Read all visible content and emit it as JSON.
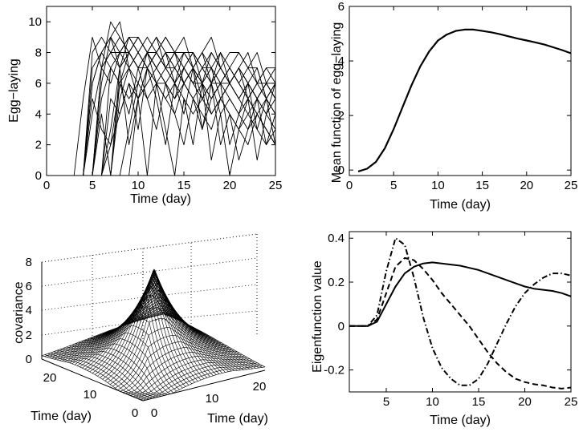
{
  "chart_data": [
    {
      "type": "line",
      "panel": "top-left",
      "xlabel": "Time (day)",
      "ylabel": "Egg−laying",
      "xlim": [
        0,
        25
      ],
      "ylim": [
        0,
        11
      ],
      "xticks": [
        0,
        5,
        10,
        15,
        20,
        25
      ],
      "yticks": [
        0,
        2,
        4,
        6,
        8,
        10
      ],
      "grid": false,
      "x": [
        1,
        2,
        3,
        4,
        5,
        6,
        7,
        8,
        9,
        10,
        11,
        12,
        13,
        14,
        15,
        16,
        17,
        18,
        19,
        20,
        21,
        22,
        23,
        24,
        25
      ],
      "series": [
        {
          "values": [
            0,
            0,
            0,
            0,
            8,
            9,
            8,
            7,
            9,
            8,
            7,
            8,
            9,
            8,
            8,
            7,
            8,
            9,
            7,
            8,
            8,
            7,
            8,
            6,
            7
          ]
        },
        {
          "values": [
            0,
            0,
            0,
            5,
            9,
            7,
            8,
            9,
            8,
            7,
            8,
            6,
            7,
            8,
            9,
            7,
            6,
            8,
            7,
            6,
            7,
            8,
            6,
            7,
            6
          ]
        },
        {
          "values": [
            0,
            0,
            0,
            0,
            6,
            8,
            9,
            10,
            7,
            8,
            9,
            8,
            7,
            6,
            8,
            8,
            7,
            6,
            8,
            7,
            6,
            7,
            7,
            5,
            6
          ]
        },
        {
          "values": [
            0,
            0,
            0,
            0,
            0,
            7,
            8,
            8,
            9,
            9,
            8,
            7,
            8,
            8,
            7,
            6,
            7,
            7,
            6,
            6,
            7,
            6,
            5,
            6,
            6
          ]
        },
        {
          "values": [
            0,
            0,
            0,
            0,
            4,
            7,
            6,
            8,
            7,
            8,
            7,
            8,
            7,
            7,
            6,
            7,
            6,
            5,
            6,
            7,
            6,
            5,
            6,
            5,
            4
          ]
        },
        {
          "values": [
            0,
            0,
            0,
            0,
            0,
            0,
            3,
            7,
            8,
            9,
            8,
            8,
            7,
            8,
            7,
            6,
            6,
            7,
            5,
            6,
            5,
            6,
            5,
            4,
            5
          ]
        },
        {
          "values": [
            0,
            0,
            0,
            0,
            7,
            8,
            7,
            6,
            7,
            5,
            6,
            7,
            6,
            5,
            6,
            5,
            6,
            4,
            5,
            6,
            5,
            4,
            5,
            4,
            3
          ]
        },
        {
          "values": [
            0,
            0,
            0,
            0,
            0,
            6,
            9,
            8,
            8,
            7,
            7,
            6,
            6,
            7,
            6,
            7,
            5,
            6,
            6,
            5,
            4,
            5,
            4,
            3,
            2
          ]
        },
        {
          "values": [
            0,
            0,
            0,
            0,
            0,
            0,
            0,
            5,
            7,
            6,
            8,
            7,
            6,
            5,
            7,
            6,
            5,
            6,
            4,
            5,
            4,
            3,
            4,
            3,
            2
          ]
        },
        {
          "values": [
            0,
            0,
            0,
            0,
            5,
            3,
            2,
            6,
            4,
            7,
            5,
            3,
            6,
            4,
            2,
            5,
            3,
            6,
            2,
            4,
            1,
            3,
            5,
            2,
            4
          ]
        },
        {
          "values": [
            0,
            0,
            0,
            0,
            0,
            0,
            2,
            4,
            6,
            3,
            7,
            5,
            2,
            6,
            4,
            7,
            3,
            5,
            6,
            2,
            4,
            6,
            3,
            5,
            2
          ]
        },
        {
          "values": [
            0,
            0,
            0,
            0,
            0,
            4,
            0,
            7,
            2,
            5,
            0,
            6,
            3,
            0,
            5,
            2,
            6,
            1,
            4,
            0,
            3,
            5,
            1,
            4,
            6
          ]
        },
        {
          "values": [
            0,
            0,
            0,
            0,
            0,
            0,
            0,
            0,
            3,
            6,
            8,
            7,
            8,
            6,
            7,
            8,
            6,
            7,
            8,
            6,
            7,
            6,
            5,
            6,
            5
          ]
        },
        {
          "values": [
            0,
            0,
            0,
            0,
            6,
            8,
            9,
            7,
            8,
            9,
            8,
            9,
            8,
            7,
            8,
            7,
            8,
            7,
            6,
            7,
            8,
            7,
            6,
            7,
            7
          ]
        },
        {
          "values": [
            0,
            0,
            0,
            0,
            0,
            7,
            10,
            9,
            8,
            7,
            8,
            9,
            7,
            8,
            6,
            7,
            8,
            6,
            7,
            6,
            7,
            5,
            6,
            6,
            5
          ]
        },
        {
          "values": [
            0,
            0,
            0,
            0,
            0,
            0,
            7,
            8,
            9,
            8,
            7,
            8,
            9,
            8,
            7,
            6,
            7,
            8,
            7,
            6,
            5,
            6,
            7,
            5,
            6
          ]
        },
        {
          "values": [
            0,
            0,
            0,
            0,
            0,
            0,
            0,
            6,
            8,
            7,
            8,
            7,
            8,
            7,
            6,
            7,
            6,
            5,
            6,
            7,
            6,
            5,
            4,
            5,
            4
          ]
        },
        {
          "values": [
            0,
            0,
            0,
            0,
            0,
            5,
            7,
            6,
            5,
            6,
            5,
            6,
            5,
            6,
            5,
            4,
            5,
            4,
            5,
            4,
            3,
            4,
            3,
            2,
            3
          ]
        },
        {
          "values": [
            0,
            0,
            0,
            0,
            0,
            0,
            5,
            4,
            6,
            5,
            7,
            6,
            5,
            4,
            6,
            5,
            4,
            3,
            5,
            4,
            3,
            2,
            4,
            3,
            2
          ]
        },
        {
          "values": [
            0,
            0,
            0,
            0,
            0,
            0,
            0,
            0,
            0,
            5,
            7,
            8,
            7,
            6,
            7,
            8,
            7,
            6,
            7,
            6,
            7,
            6,
            5,
            6,
            5
          ]
        }
      ]
    },
    {
      "type": "line",
      "panel": "top-right",
      "xlabel": "Time (day)",
      "ylabel": "Mean function of egg−laying",
      "xlim": [
        0,
        25
      ],
      "ylim": [
        -0.2,
        6
      ],
      "xticks": [
        0,
        5,
        10,
        15,
        20,
        25
      ],
      "yticks": [
        0,
        2,
        4,
        6
      ],
      "grid": false,
      "x": [
        1,
        2,
        3,
        4,
        5,
        6,
        7,
        8,
        9,
        10,
        11,
        12,
        13,
        14,
        15,
        16,
        17,
        18,
        19,
        20,
        21,
        22,
        23,
        24,
        25
      ],
      "series": [
        {
          "values": [
            -0.05,
            0.05,
            0.3,
            0.8,
            1.5,
            2.3,
            3.1,
            3.8,
            4.35,
            4.75,
            4.97,
            5.1,
            5.15,
            5.15,
            5.1,
            5.05,
            4.98,
            4.9,
            4.82,
            4.75,
            4.68,
            4.6,
            4.5,
            4.4,
            4.28
          ],
          "style": "solid"
        }
      ]
    },
    {
      "type": "surface",
      "panel": "bottom-left",
      "xlabel": "Time (day)",
      "ylabel": "Time (day)",
      "zlabel": "covariance",
      "xlim": [
        0,
        25
      ],
      "ylim": [
        0,
        25
      ],
      "zlim": [
        0,
        8
      ],
      "xticks": [
        0,
        10,
        20
      ],
      "yticks": [
        0,
        10,
        20
      ],
      "zticks": [
        0,
        2,
        4,
        6,
        8
      ],
      "grid": true,
      "description_values": {
        "peak_covariance": 7.8
      }
    },
    {
      "type": "line",
      "panel": "bottom-right",
      "xlabel": "Time (day)",
      "ylabel": "Eigenfunction value",
      "xlim": [
        1,
        25
      ],
      "ylim": [
        -0.3,
        0.43
      ],
      "xticks": [
        5,
        10,
        15,
        20,
        25
      ],
      "yticks": [
        -0.2,
        0,
        0.2,
        0.4
      ],
      "grid": false,
      "x": [
        1,
        2,
        3,
        4,
        5,
        6,
        7,
        8,
        9,
        10,
        11,
        12,
        13,
        14,
        15,
        16,
        17,
        18,
        19,
        20,
        21,
        22,
        23,
        24,
        25
      ],
      "series": [
        {
          "style": "solid",
          "values": [
            0,
            0,
            0,
            0.02,
            0.1,
            0.18,
            0.24,
            0.27,
            0.285,
            0.29,
            0.285,
            0.28,
            0.275,
            0.265,
            0.255,
            0.24,
            0.225,
            0.21,
            0.195,
            0.18,
            0.17,
            0.165,
            0.16,
            0.15,
            0.135
          ]
        },
        {
          "style": "dashed",
          "values": [
            0,
            0,
            0,
            0.03,
            0.15,
            0.27,
            0.31,
            0.3,
            0.26,
            0.21,
            0.15,
            0.1,
            0.05,
            0.0,
            -0.06,
            -0.12,
            -0.17,
            -0.21,
            -0.24,
            -0.255,
            -0.265,
            -0.27,
            -0.28,
            -0.285,
            -0.28
          ]
        },
        {
          "style": "dashdot",
          "values": [
            0,
            0,
            0,
            0.05,
            0.25,
            0.4,
            0.37,
            0.22,
            0.04,
            -0.1,
            -0.19,
            -0.24,
            -0.27,
            -0.27,
            -0.24,
            -0.17,
            -0.08,
            0.01,
            0.09,
            0.15,
            0.19,
            0.22,
            0.24,
            0.24,
            0.23
          ]
        }
      ]
    }
  ]
}
